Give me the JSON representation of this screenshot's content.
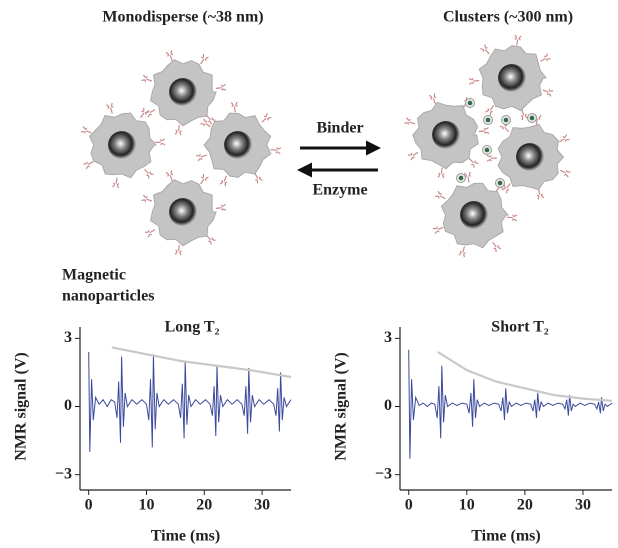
{
  "diagram": {
    "left_title": "Monodisperse (~38 nm)",
    "right_title": "Clusters (~300 nm)",
    "forward_label": "Binder",
    "reverse_label": "Enzyme",
    "particle_label": [
      "Magnetic",
      "nanoparticles"
    ]
  },
  "chart_data": [
    {
      "type": "line",
      "annotation": "Long T₂",
      "xlabel": "Time (ms)",
      "ylabel": "NMR signal (V)",
      "xlim": [
        -1.5,
        35
      ],
      "ylim": [
        -3.5,
        3.5
      ],
      "xticks": [
        0,
        10,
        20,
        30
      ],
      "yticks": [
        {
          "value": -3,
          "label": "−3"
        },
        0,
        3
      ],
      "series": [
        {
          "color": "#3b4a9c",
          "x": [
            0,
            0.2,
            0.5,
            0.8,
            1.2,
            1.8,
            2.5,
            3.2,
            3.9,
            4.5,
            4.9,
            5.2,
            5.5,
            5.7,
            6.0,
            6.3,
            6.7,
            7.5,
            8.3,
            9.2,
            10.0,
            10.4,
            10.7,
            11.0,
            11.2,
            11.5,
            11.8,
            12.2,
            13.0,
            13.8,
            14.7,
            15.5,
            15.9,
            16.2,
            16.5,
            16.7,
            17.0,
            17.3,
            17.7,
            18.5,
            19.3,
            20.2,
            21.0,
            21.4,
            21.7,
            22.0,
            22.2,
            22.5,
            22.8,
            23.2,
            24.0,
            24.8,
            25.7,
            26.5,
            26.9,
            27.2,
            27.5,
            27.7,
            28.0,
            28.3,
            28.7,
            29.5,
            30.3,
            31.2,
            32.0,
            32.4,
            32.7,
            33.0,
            33.2,
            33.5,
            33.8,
            34.2,
            35.0
          ],
          "values": [
            2.4,
            -2.0,
            1.2,
            -0.6,
            0.4,
            0.1,
            0.3,
            0.0,
            0.3,
            0.2,
            -0.5,
            1.1,
            -1.6,
            2.2,
            -0.9,
            0.6,
            0.0,
            0.3,
            0.1,
            0.3,
            0.1,
            -0.6,
            1.2,
            -1.8,
            2.3,
            -1.0,
            0.6,
            0.0,
            0.3,
            0.1,
            0.3,
            0.1,
            -0.5,
            1.0,
            -1.4,
            2.0,
            -0.8,
            0.5,
            0.0,
            0.3,
            0.1,
            0.3,
            0.1,
            -0.4,
            0.9,
            -1.3,
            1.8,
            -0.7,
            0.5,
            0.0,
            0.3,
            0.1,
            0.3,
            0.1,
            -0.4,
            0.9,
            -1.2,
            1.7,
            -0.7,
            0.5,
            0.0,
            0.3,
            0.1,
            0.3,
            0.1,
            -0.4,
            0.8,
            -1.1,
            1.5,
            -0.6,
            0.4,
            0.0,
            0.3
          ]
        },
        {
          "color": "#c8c8c8",
          "x": [
            4,
            10,
            16,
            22,
            28,
            35
          ],
          "values": [
            2.6,
            2.3,
            2.0,
            1.8,
            1.6,
            1.3
          ]
        }
      ]
    },
    {
      "type": "line",
      "annotation": "Short T₂",
      "xlabel": "Time (ms)",
      "ylabel": "NMR signal (V)",
      "xlim": [
        -1.5,
        35
      ],
      "ylim": [
        -3.5,
        3.5
      ],
      "xticks": [
        0,
        10,
        20,
        30
      ],
      "yticks": [
        {
          "value": -3,
          "label": "−3"
        },
        0,
        3
      ],
      "series": [
        {
          "color": "#3b4a9c",
          "x": [
            0,
            0.2,
            0.5,
            0.8,
            1.2,
            1.8,
            2.5,
            3.2,
            3.9,
            4.5,
            4.9,
            5.2,
            5.5,
            5.7,
            6.0,
            6.3,
            6.7,
            7.5,
            8.3,
            9.2,
            10.0,
            10.4,
            10.7,
            11.0,
            11.2,
            11.5,
            11.8,
            12.2,
            13.0,
            13.8,
            14.7,
            15.5,
            15.9,
            16.2,
            16.5,
            16.7,
            17.0,
            17.3,
            17.7,
            18.5,
            19.3,
            20.2,
            21.0,
            21.4,
            21.7,
            22.0,
            22.2,
            22.5,
            22.8,
            23.2,
            24.0,
            24.8,
            25.7,
            26.5,
            26.9,
            27.2,
            27.5,
            27.7,
            28.0,
            28.3,
            28.7,
            29.5,
            30.3,
            31.2,
            32.0,
            32.4,
            32.7,
            33.0,
            33.2,
            33.5,
            33.8,
            34.2,
            35.0
          ],
          "values": [
            2.5,
            -2.3,
            1.2,
            -0.6,
            0.4,
            0.05,
            0.15,
            0.0,
            0.15,
            0.1,
            -0.5,
            0.9,
            -1.4,
            1.8,
            -0.7,
            0.5,
            0.0,
            0.15,
            0.05,
            0.15,
            0.1,
            -0.3,
            0.6,
            -0.9,
            1.2,
            -0.5,
            0.3,
            0.0,
            0.15,
            0.05,
            0.15,
            0.1,
            -0.2,
            0.4,
            -0.6,
            0.8,
            -0.3,
            0.2,
            0.0,
            0.15,
            0.05,
            0.15,
            0.1,
            -0.2,
            0.3,
            -0.5,
            0.6,
            -0.2,
            0.2,
            0.0,
            0.15,
            0.05,
            0.15,
            0.1,
            -0.1,
            0.3,
            -0.4,
            0.5,
            -0.2,
            0.1,
            0.0,
            0.15,
            0.05,
            0.15,
            0.1,
            -0.1,
            0.2,
            -0.3,
            0.4,
            -0.2,
            0.1,
            0.0,
            0.15
          ]
        },
        {
          "color": "#c8c8c8",
          "x": [
            5,
            10,
            15,
            20,
            25,
            30,
            35
          ],
          "values": [
            2.4,
            1.6,
            1.1,
            0.8,
            0.5,
            0.35,
            0.25
          ]
        }
      ]
    }
  ]
}
